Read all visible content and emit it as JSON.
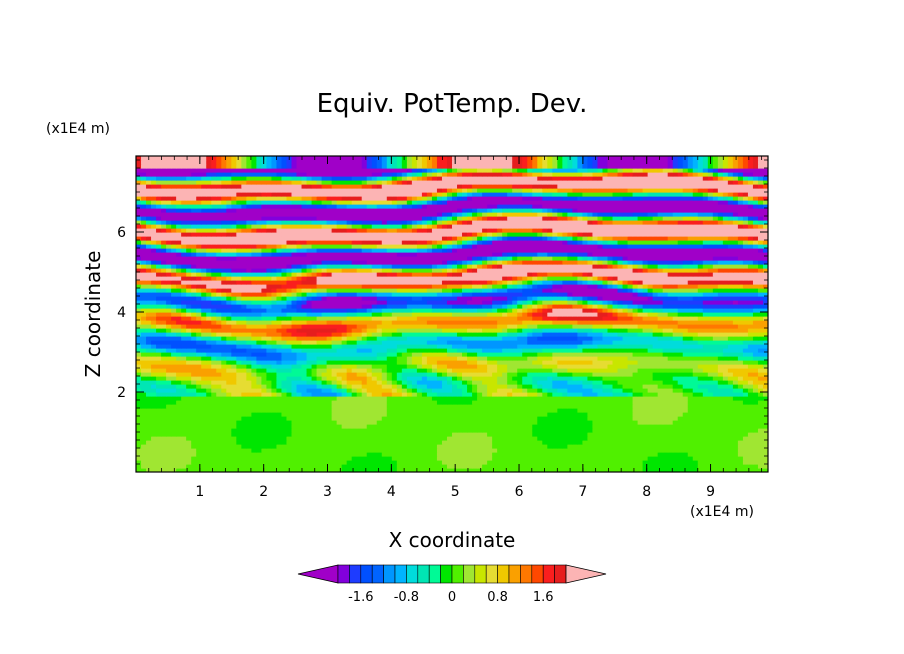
{
  "chart_data": {
    "type": "heatmap",
    "title": "Equiv. PotTemp. Dev.",
    "xlabel": "X coordinate",
    "ylabel": "Z coordinate",
    "x_unit": "(x1E4 m)",
    "y_unit": "(x1E4 m)",
    "xlim": [
      0,
      9.9
    ],
    "ylim": [
      0,
      7.9
    ],
    "x_ticks": [
      1,
      2,
      3,
      4,
      5,
      6,
      7,
      8,
      9
    ],
    "y_ticks": [
      2,
      4,
      6
    ],
    "x_tick_labels": [
      "1",
      "2",
      "3",
      "4",
      "5",
      "6",
      "7",
      "8",
      "9"
    ],
    "y_tick_labels": [
      "2",
      "4",
      "6"
    ],
    "colorbar": {
      "min": -2,
      "max": 2,
      "step": 0.2,
      "tick_values": [
        -1.6,
        -0.8,
        0,
        0.8,
        1.6
      ],
      "tick_labels": [
        "-1.6",
        "-0.8",
        "0",
        "0.8",
        "1.6"
      ],
      "colors": [
        "#a000c8",
        "#8200dc",
        "#1e3cff",
        "#0050ff",
        "#0064ff",
        "#0096ff",
        "#00b4ff",
        "#00dcdc",
        "#00e6b4",
        "#00fa96",
        "#00e600",
        "#50f000",
        "#a0e632",
        "#c8e600",
        "#e6dc32",
        "#f0c800",
        "#faa000",
        "#ff7800",
        "#ff4800",
        "#fa1e1e",
        "#e61e1e",
        "#fcb4b4"
      ]
    },
    "description_bands": [
      {
        "z_range": [
          0,
          2
        ],
        "pattern": "near-zero (green / aqua-green mottled)"
      },
      {
        "z_range": [
          2,
          4.5
        ],
        "pattern": "small-scale mixed positive and negative deviations"
      },
      {
        "z_range": [
          4.5,
          7.9
        ],
        "pattern": "layered horizontal bands of strong positive (pink) and negative (purple) deviations"
      }
    ]
  }
}
